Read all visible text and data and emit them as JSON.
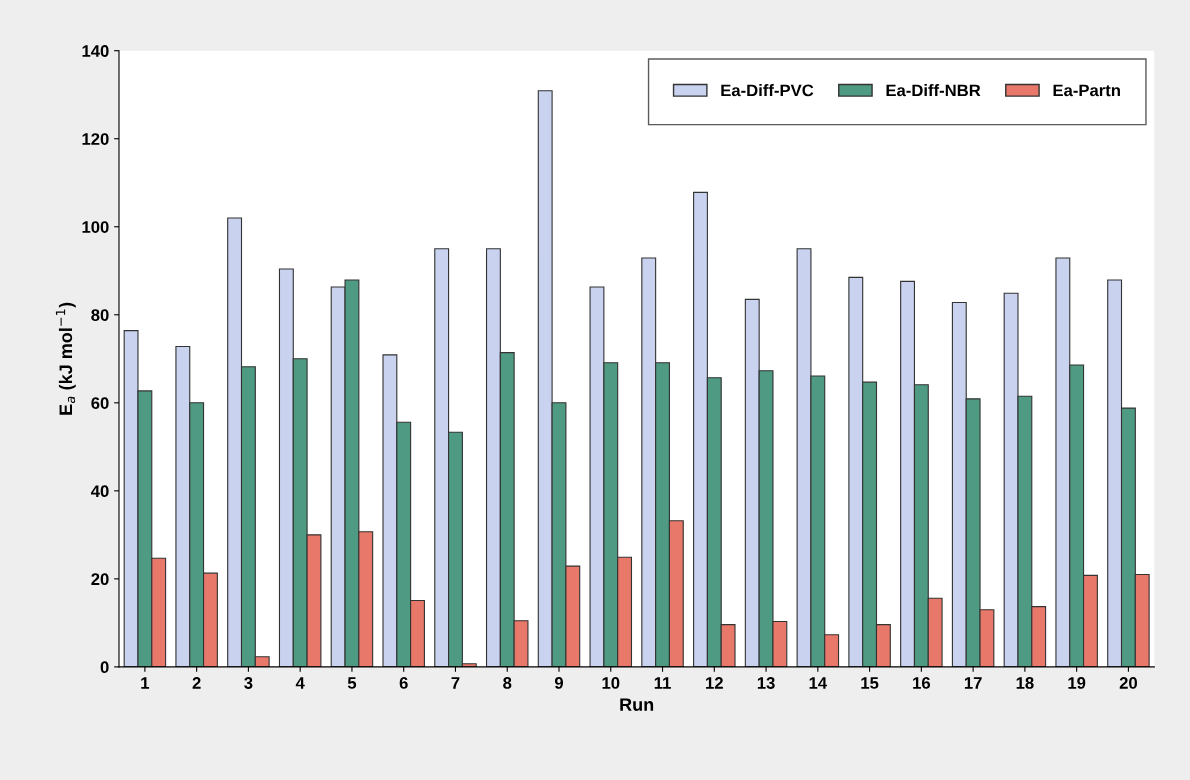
{
  "chart_data": {
    "type": "bar",
    "xlabel": "Run",
    "ylabel": "E$_{a}$ (kJ mol$^{−1}$)",
    "categories": [
      "1",
      "2",
      "3",
      "4",
      "5",
      "6",
      "7",
      "8",
      "9",
      "10",
      "11",
      "12",
      "13",
      "14",
      "15",
      "16",
      "17",
      "18",
      "19",
      "20"
    ],
    "series": [
      {
        "name": "Ea-Diff-PVC",
        "color": "#c9d2ee",
        "values": [
          76.4,
          72.8,
          102,
          90.4,
          86.3,
          70.9,
          95,
          95,
          130.9,
          86.3,
          92.9,
          107.8,
          83.5,
          95,
          88.5,
          87.6,
          82.8,
          84.9,
          92.9,
          87.9
        ]
      },
      {
        "name": "Ea-Diff-NBR",
        "color": "#4f9a82",
        "values": [
          62.7,
          60,
          68.2,
          70,
          87.9,
          55.6,
          53.3,
          71.4,
          60,
          69.1,
          69.1,
          65.7,
          67.3,
          66.1,
          64.7,
          64.1,
          60.9,
          61.5,
          68.6,
          58.8
        ]
      },
      {
        "name": "Ea-Partn",
        "color": "#e8796a",
        "values": [
          24.7,
          21.3,
          2.3,
          30,
          30.7,
          15.1,
          0.7,
          10.5,
          22.9,
          24.9,
          33.2,
          9.6,
          10.3,
          7.3,
          9.6,
          15.6,
          13,
          13.7,
          20.8,
          21
        ]
      }
    ],
    "ylim": [
      0,
      140
    ],
    "yticks": [
      0,
      20,
      40,
      60,
      80,
      100,
      120,
      140
    ],
    "grid": false,
    "legend": "top right"
  }
}
